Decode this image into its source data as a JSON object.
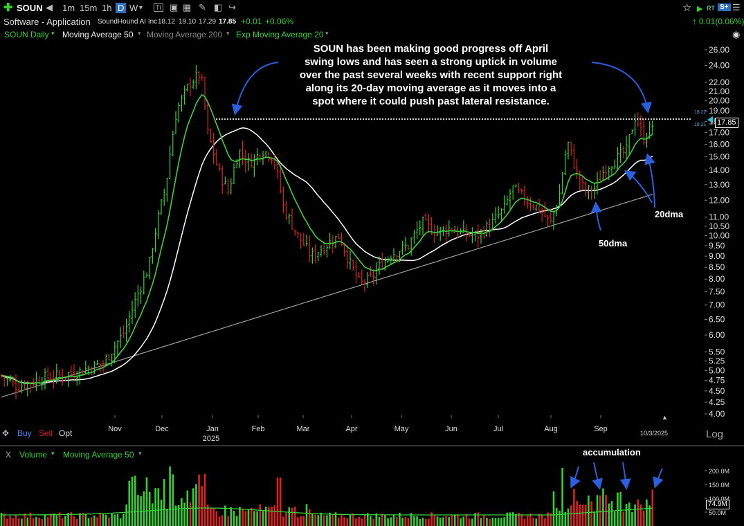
{
  "toolbar": {
    "symbol": "SOUN",
    "intervals": [
      "1m",
      "15m",
      "1h",
      "D",
      "W"
    ],
    "active_interval": "D"
  },
  "quote": {
    "industry": "Software - Application",
    "company": "SoundHound AI Inc",
    "open": "18.12",
    "high": "19.10",
    "low": "17.29",
    "close": "17.85",
    "change": "+0.01",
    "change_pct": "+0.06%",
    "right_change": "0.01(0.06%)",
    "rt_label": "RT",
    "s_label": "S+"
  },
  "indicators": {
    "title": "SOUN Daily",
    "ma50": "Moving Average 50",
    "ma200": "Moving Average 200",
    "ema20": "Exp Moving Average 20"
  },
  "annotation": {
    "lines": [
      "SOUN has been making good progress off April",
      "swing lows and has seen a strong uptick in volume",
      "over the past several weeks with recent support right",
      "along its 20-day moving average as it moves into a",
      "spot where it could push past lateral resistance."
    ],
    "label_20dma": "20dma",
    "label_50dma": "50dma",
    "label_accumulation": "accumulation"
  },
  "price_axis": {
    "ticks": [
      "26.00",
      "24.00",
      "22.00",
      "21.00",
      "20.00",
      "19.00",
      "18.00",
      "17.00",
      "16.00",
      "15.00",
      "14.00",
      "13.00",
      "12.00",
      "11.00",
      "10.50",
      "10.00",
      "9.50",
      "9.00",
      "8.50",
      "8.00",
      "7.50",
      "7.00",
      "6.50",
      "6.00",
      "5.50",
      "5.25",
      "5.00",
      "4.75",
      "4.50",
      "4.25",
      "4.00"
    ],
    "tag_high": "18.22",
    "tag_low": "18.21",
    "last_price": "17.85"
  },
  "time_axis": {
    "months": [
      "Nov",
      "Dec",
      "Jan",
      "Feb",
      "Mar",
      "Apr",
      "May",
      "Jun",
      "Jul",
      "Aug",
      "Sep"
    ],
    "year": "2025",
    "last_date": "10/3/2025"
  },
  "trade_buttons": {
    "buy": "Buy",
    "sell": "Sell",
    "opt": "Opt"
  },
  "log_label": "Log",
  "volume_panel": {
    "close_x": "X",
    "title": "Volume",
    "ma": "Moving Average 50",
    "ticks": [
      "200.0M",
      "150.0M",
      "100.0M",
      "50.0M"
    ],
    "last_volume": "74.9M"
  },
  "colors": {
    "up": "#2fd22f",
    "down": "#e02020",
    "ema20": "#3cd23c",
    "ma50": "#ffffff",
    "ma200": "#a0a0a0",
    "annotation_arrow": "#2a5fe0",
    "volume_ma": "#3cd23c",
    "ma50_header": "#f0f0f0",
    "ma200_header": "#888888"
  }
}
